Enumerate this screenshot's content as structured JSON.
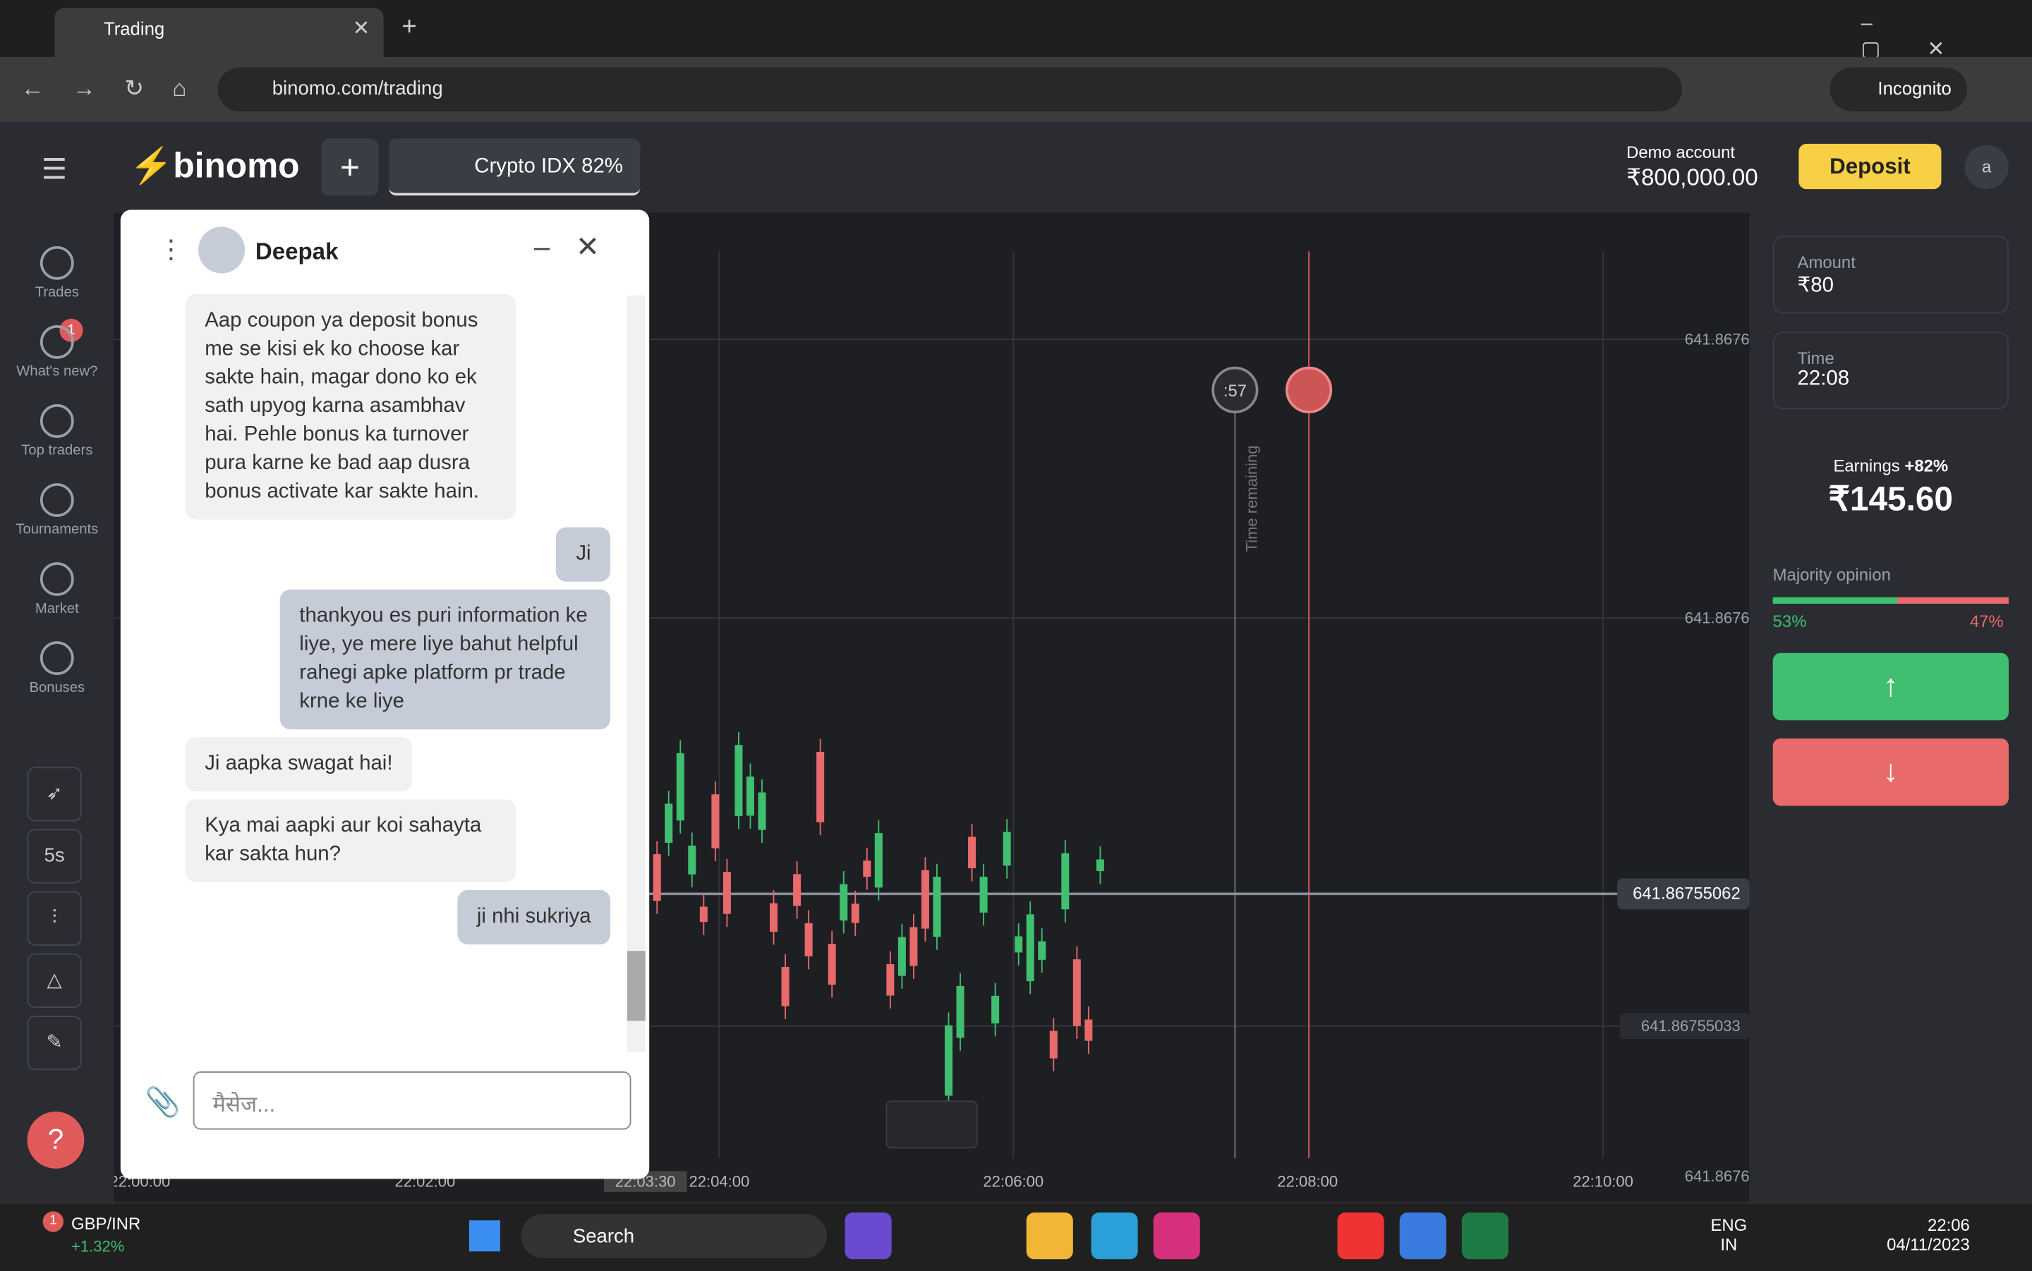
{
  "browser": {
    "tab_title": "Trading",
    "url": "binomo.com/trading",
    "incognito": "Incognito"
  },
  "header": {
    "logo": "binomo",
    "asset": "Crypto IDX 82%",
    "account_label": "Demo account",
    "balance": "₹800,000.00",
    "deposit": "Deposit",
    "avatar": "a"
  },
  "sidebar": {
    "items": [
      "Trades",
      "What's new?",
      "Top traders",
      "Tournaments",
      "Market",
      "Bonuses"
    ],
    "badge": "1",
    "interval": "5s"
  },
  "chat": {
    "name": "Deepak",
    "messages": [
      {
        "from": "agent",
        "text": "Aap coupon ya deposit bonus me se kisi ek ko choose kar sakte hain, magar dono ko ek sath upyog karna asambhav hai. Pehle bonus ka turnover pura karne ke bad aap dusra bonus activate kar sakte hain."
      },
      {
        "from": "user",
        "text": "Ji"
      },
      {
        "from": "user",
        "text": "thankyou es puri information ke liye, ye mere liye bahut helpful rahegi apke platform pr trade krne ke liye"
      },
      {
        "from": "agent",
        "text": "Ji aapka swagat hai!"
      },
      {
        "from": "agent",
        "text": "Kya mai aapki aur koi sahayta kar sakta hun?"
      },
      {
        "from": "user",
        "text": "ji nhi sukriya"
      }
    ],
    "placeholder": "मैसेज..."
  },
  "chart": {
    "price_labels": [
      "641.8676",
      "641.8676",
      "641.86755062",
      "641.86755033",
      "641.8676"
    ],
    "time_labels": [
      "22:00:00",
      "22:02:00",
      "22:03:30",
      "22:04:00",
      "22:06:00",
      "22:08:00",
      "22:10:00"
    ],
    "timer": ":57",
    "time_remaining": "Time remaining"
  },
  "panel": {
    "amount_label": "Amount",
    "amount": "₹80",
    "time_label": "Time",
    "time": "22:08",
    "earnings_label": "Earnings",
    "earnings_pct": "+82%",
    "earnings": "₹145.60",
    "majority_label": "Majority opinion",
    "majority": {
      "values": [
        53,
        47
      ],
      "value_labels": [
        "53%",
        "47%"
      ]
    }
  },
  "taskbar": {
    "ticker": "GBP/INR",
    "change": "+1.32%",
    "notif": "1",
    "search": "Search",
    "lang": "ENG",
    "region": "IN",
    "clock": "22:06",
    "date": "04/11/2023"
  }
}
